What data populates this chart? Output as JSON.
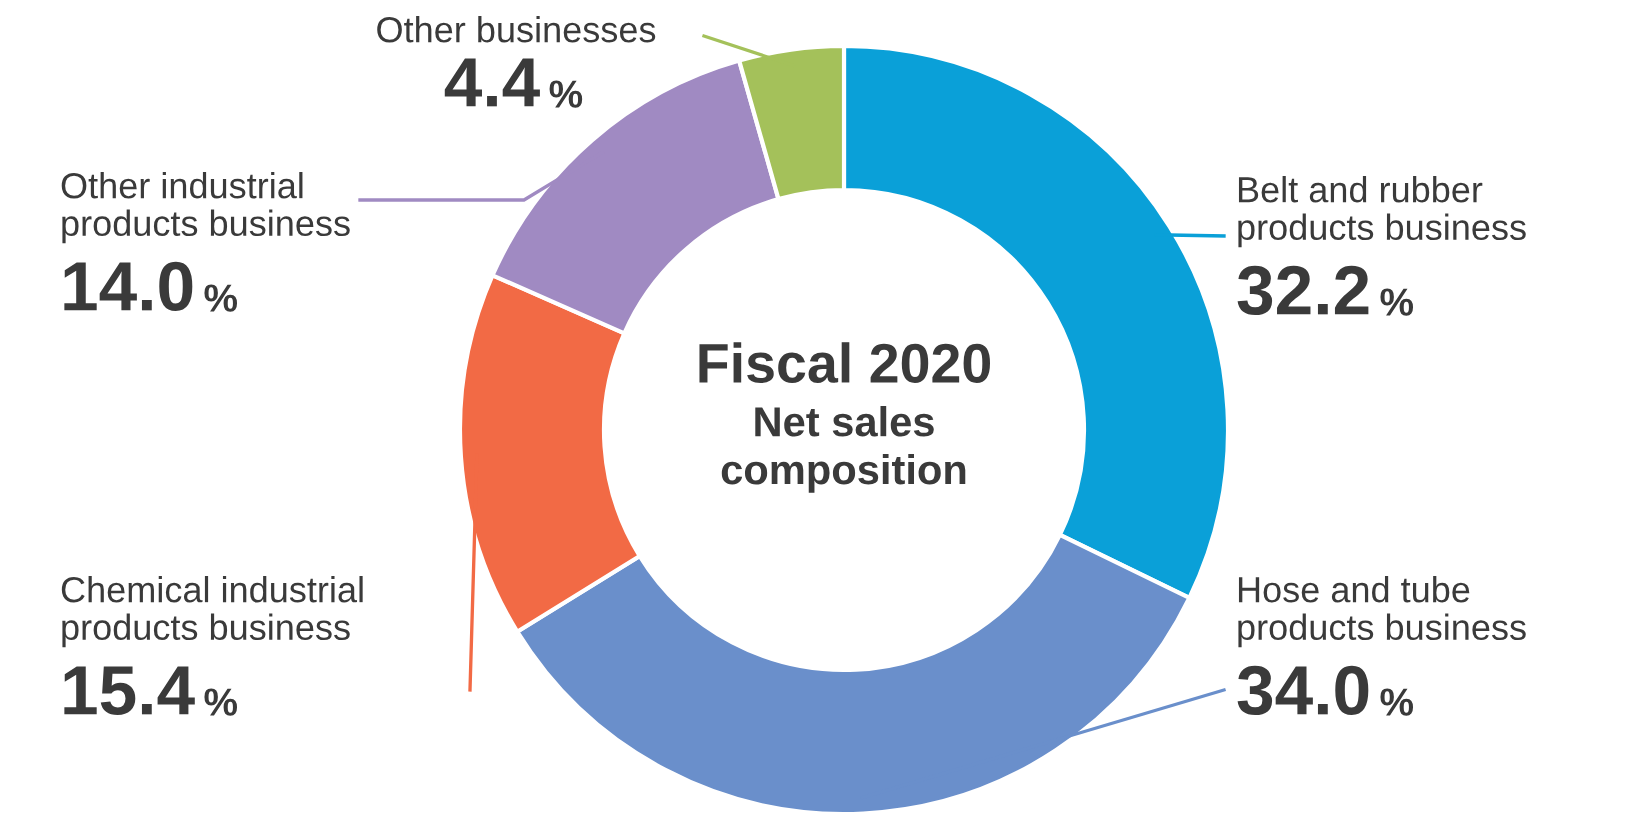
{
  "chart_data": {
    "type": "donut",
    "title": "Fiscal 2020",
    "subtitle": "Net sales\ncomposition",
    "categories": [
      "Belt and rubber\nproducts business",
      "Hose and tube\nproducts business",
      "Chemical industrial\nproducts business",
      "Other industrial\nproducts business",
      "Other businesses"
    ],
    "values": [
      32.2,
      34.0,
      15.4,
      14.0,
      4.4
    ],
    "colors": [
      "#0aa0d8",
      "#6a8fcb",
      "#f26a45",
      "#a08ac2",
      "#a4c15a"
    ],
    "value_labels": [
      "32.2%",
      "34.0%",
      "15.4%",
      "14.0%",
      "4.4%"
    ]
  }
}
